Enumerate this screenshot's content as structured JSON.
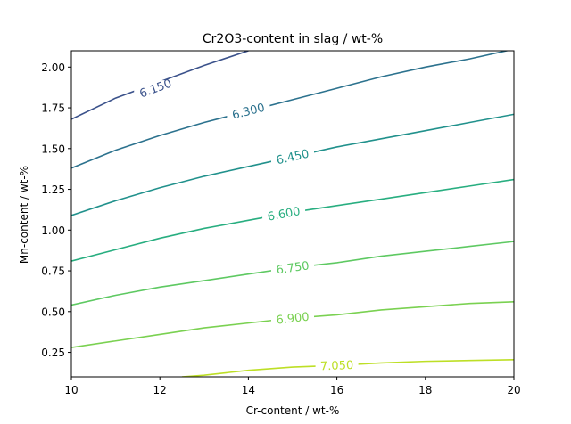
{
  "chart_data": {
    "type": "contour",
    "title": "Cr2O3-content in slag / wt-%",
    "xlabel": "Cr-content / wt-%",
    "ylabel": "Mn-content / wt-%",
    "xlim": [
      10,
      20
    ],
    "ylim": [
      0.1,
      2.1
    ],
    "xticks": [
      "10",
      "12",
      "14",
      "16",
      "18",
      "20"
    ],
    "yticks": [
      "0.25",
      "0.50",
      "0.75",
      "1.00",
      "1.25",
      "1.50",
      "1.75",
      "2.00"
    ],
    "grid": false,
    "levels": [
      {
        "label": "6.150",
        "value": 6.15,
        "color": "#3b528b",
        "points": [
          [
            10,
            1.68
          ],
          [
            11,
            1.81
          ],
          [
            12,
            1.91
          ],
          [
            13,
            2.01
          ],
          [
            14,
            2.1
          ]
        ]
      },
      {
        "label": "6.300",
        "value": 6.3,
        "color": "#2c728e",
        "points": [
          [
            10,
            1.38
          ],
          [
            11,
            1.49
          ],
          [
            12,
            1.58
          ],
          [
            13,
            1.66
          ],
          [
            14,
            1.73
          ],
          [
            15,
            1.8
          ],
          [
            16,
            1.87
          ],
          [
            17,
            1.94
          ],
          [
            18,
            2.0
          ],
          [
            19,
            2.05
          ],
          [
            20,
            2.11
          ]
        ]
      },
      {
        "label": "6.450",
        "value": 6.45,
        "color": "#21918c",
        "points": [
          [
            10,
            1.09
          ],
          [
            11,
            1.18
          ],
          [
            12,
            1.26
          ],
          [
            13,
            1.33
          ],
          [
            14,
            1.39
          ],
          [
            15,
            1.45
          ],
          [
            16,
            1.51
          ],
          [
            17,
            1.56
          ],
          [
            18,
            1.61
          ],
          [
            19,
            1.66
          ],
          [
            20,
            1.71
          ]
        ]
      },
      {
        "label": "6.600",
        "value": 6.6,
        "color": "#28ae80",
        "points": [
          [
            10,
            0.81
          ],
          [
            11,
            0.88
          ],
          [
            12,
            0.95
          ],
          [
            13,
            1.01
          ],
          [
            14,
            1.06
          ],
          [
            15,
            1.11
          ],
          [
            16,
            1.15
          ],
          [
            17,
            1.19
          ],
          [
            18,
            1.23
          ],
          [
            19,
            1.27
          ],
          [
            20,
            1.31
          ]
        ]
      },
      {
        "label": "6.750",
        "value": 6.75,
        "color": "#5ec962",
        "points": [
          [
            10,
            0.54
          ],
          [
            11,
            0.6
          ],
          [
            12,
            0.65
          ],
          [
            13,
            0.69
          ],
          [
            14,
            0.73
          ],
          [
            15,
            0.77
          ],
          [
            16,
            0.8
          ],
          [
            17,
            0.84
          ],
          [
            18,
            0.87
          ],
          [
            19,
            0.9
          ],
          [
            20,
            0.93
          ]
        ]
      },
      {
        "label": "6.900",
        "value": 6.9,
        "color": "#7ad151",
        "points": [
          [
            10,
            0.28
          ],
          [
            11,
            0.32
          ],
          [
            12,
            0.36
          ],
          [
            13,
            0.4
          ],
          [
            14,
            0.43
          ],
          [
            15,
            0.46
          ],
          [
            16,
            0.48
          ],
          [
            17,
            0.51
          ],
          [
            18,
            0.53
          ],
          [
            19,
            0.55
          ],
          [
            20,
            0.56
          ]
        ]
      },
      {
        "label": "7.050",
        "value": 7.05,
        "color": "#bddf26",
        "points": [
          [
            12.5,
            0.1
          ],
          [
            13,
            0.11
          ],
          [
            14,
            0.14
          ],
          [
            15,
            0.16
          ],
          [
            16,
            0.17
          ],
          [
            17,
            0.185
          ],
          [
            18,
            0.195
          ],
          [
            19,
            0.2
          ],
          [
            20,
            0.205
          ]
        ]
      }
    ],
    "label_positions": [
      {
        "label": "6.150",
        "x": 11.9,
        "y": 1.87
      },
      {
        "label": "6.300",
        "x": 14.0,
        "y": 1.73
      },
      {
        "label": "6.450",
        "x": 15.0,
        "y": 1.45
      },
      {
        "label": "6.600",
        "x": 14.8,
        "y": 1.1
      },
      {
        "label": "6.750",
        "x": 15.0,
        "y": 0.77
      },
      {
        "label": "6.900",
        "x": 15.0,
        "y": 0.46
      },
      {
        "label": "7.050",
        "x": 16.0,
        "y": 0.17
      }
    ]
  }
}
